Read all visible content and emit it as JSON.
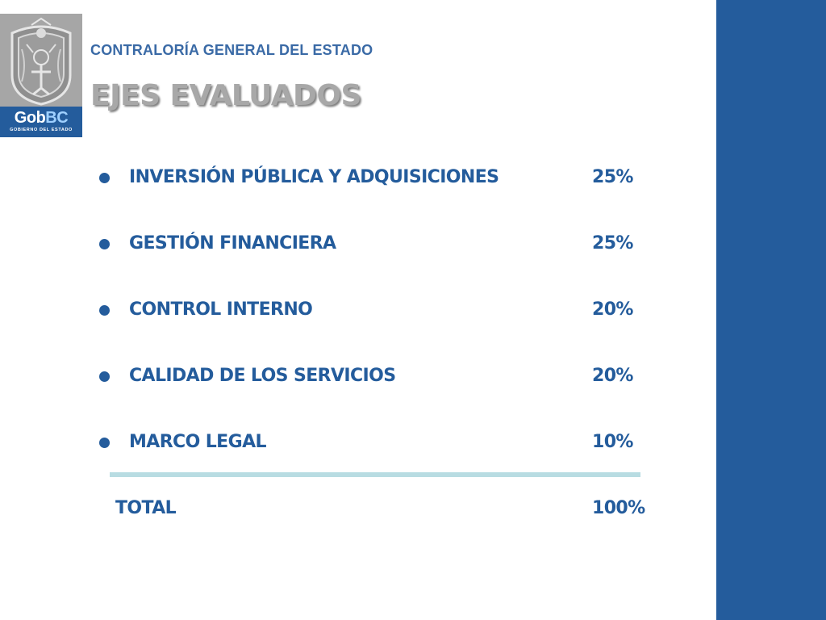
{
  "header": {
    "organization": "CONTRALORÍA GENERAL DEL ESTADO",
    "title": "EJES EVALUADOS"
  },
  "logo": {
    "brand_prefix": "Gob",
    "brand_suffix": "BC",
    "subtitle": "GOBIERNO DEL ESTADO"
  },
  "axes": [
    {
      "name": "INVERSIÓN PÚBLICA Y ADQUISICIONES",
      "percent": "25%"
    },
    {
      "name": "GESTIÓN FINANCIERA",
      "percent": "25%"
    },
    {
      "name": "CONTROL INTERNO",
      "percent": "20%"
    },
    {
      "name": "CALIDAD DE LOS SERVICIOS",
      "percent": "20%"
    },
    {
      "name": "MARCO LEGAL",
      "percent": "10%"
    }
  ],
  "total": {
    "label": "TOTAL",
    "percent": "100%"
  },
  "colors": {
    "primary_blue": "#245c9c",
    "title_gray": "#a8a8a8",
    "divider": "#b8dce2"
  }
}
